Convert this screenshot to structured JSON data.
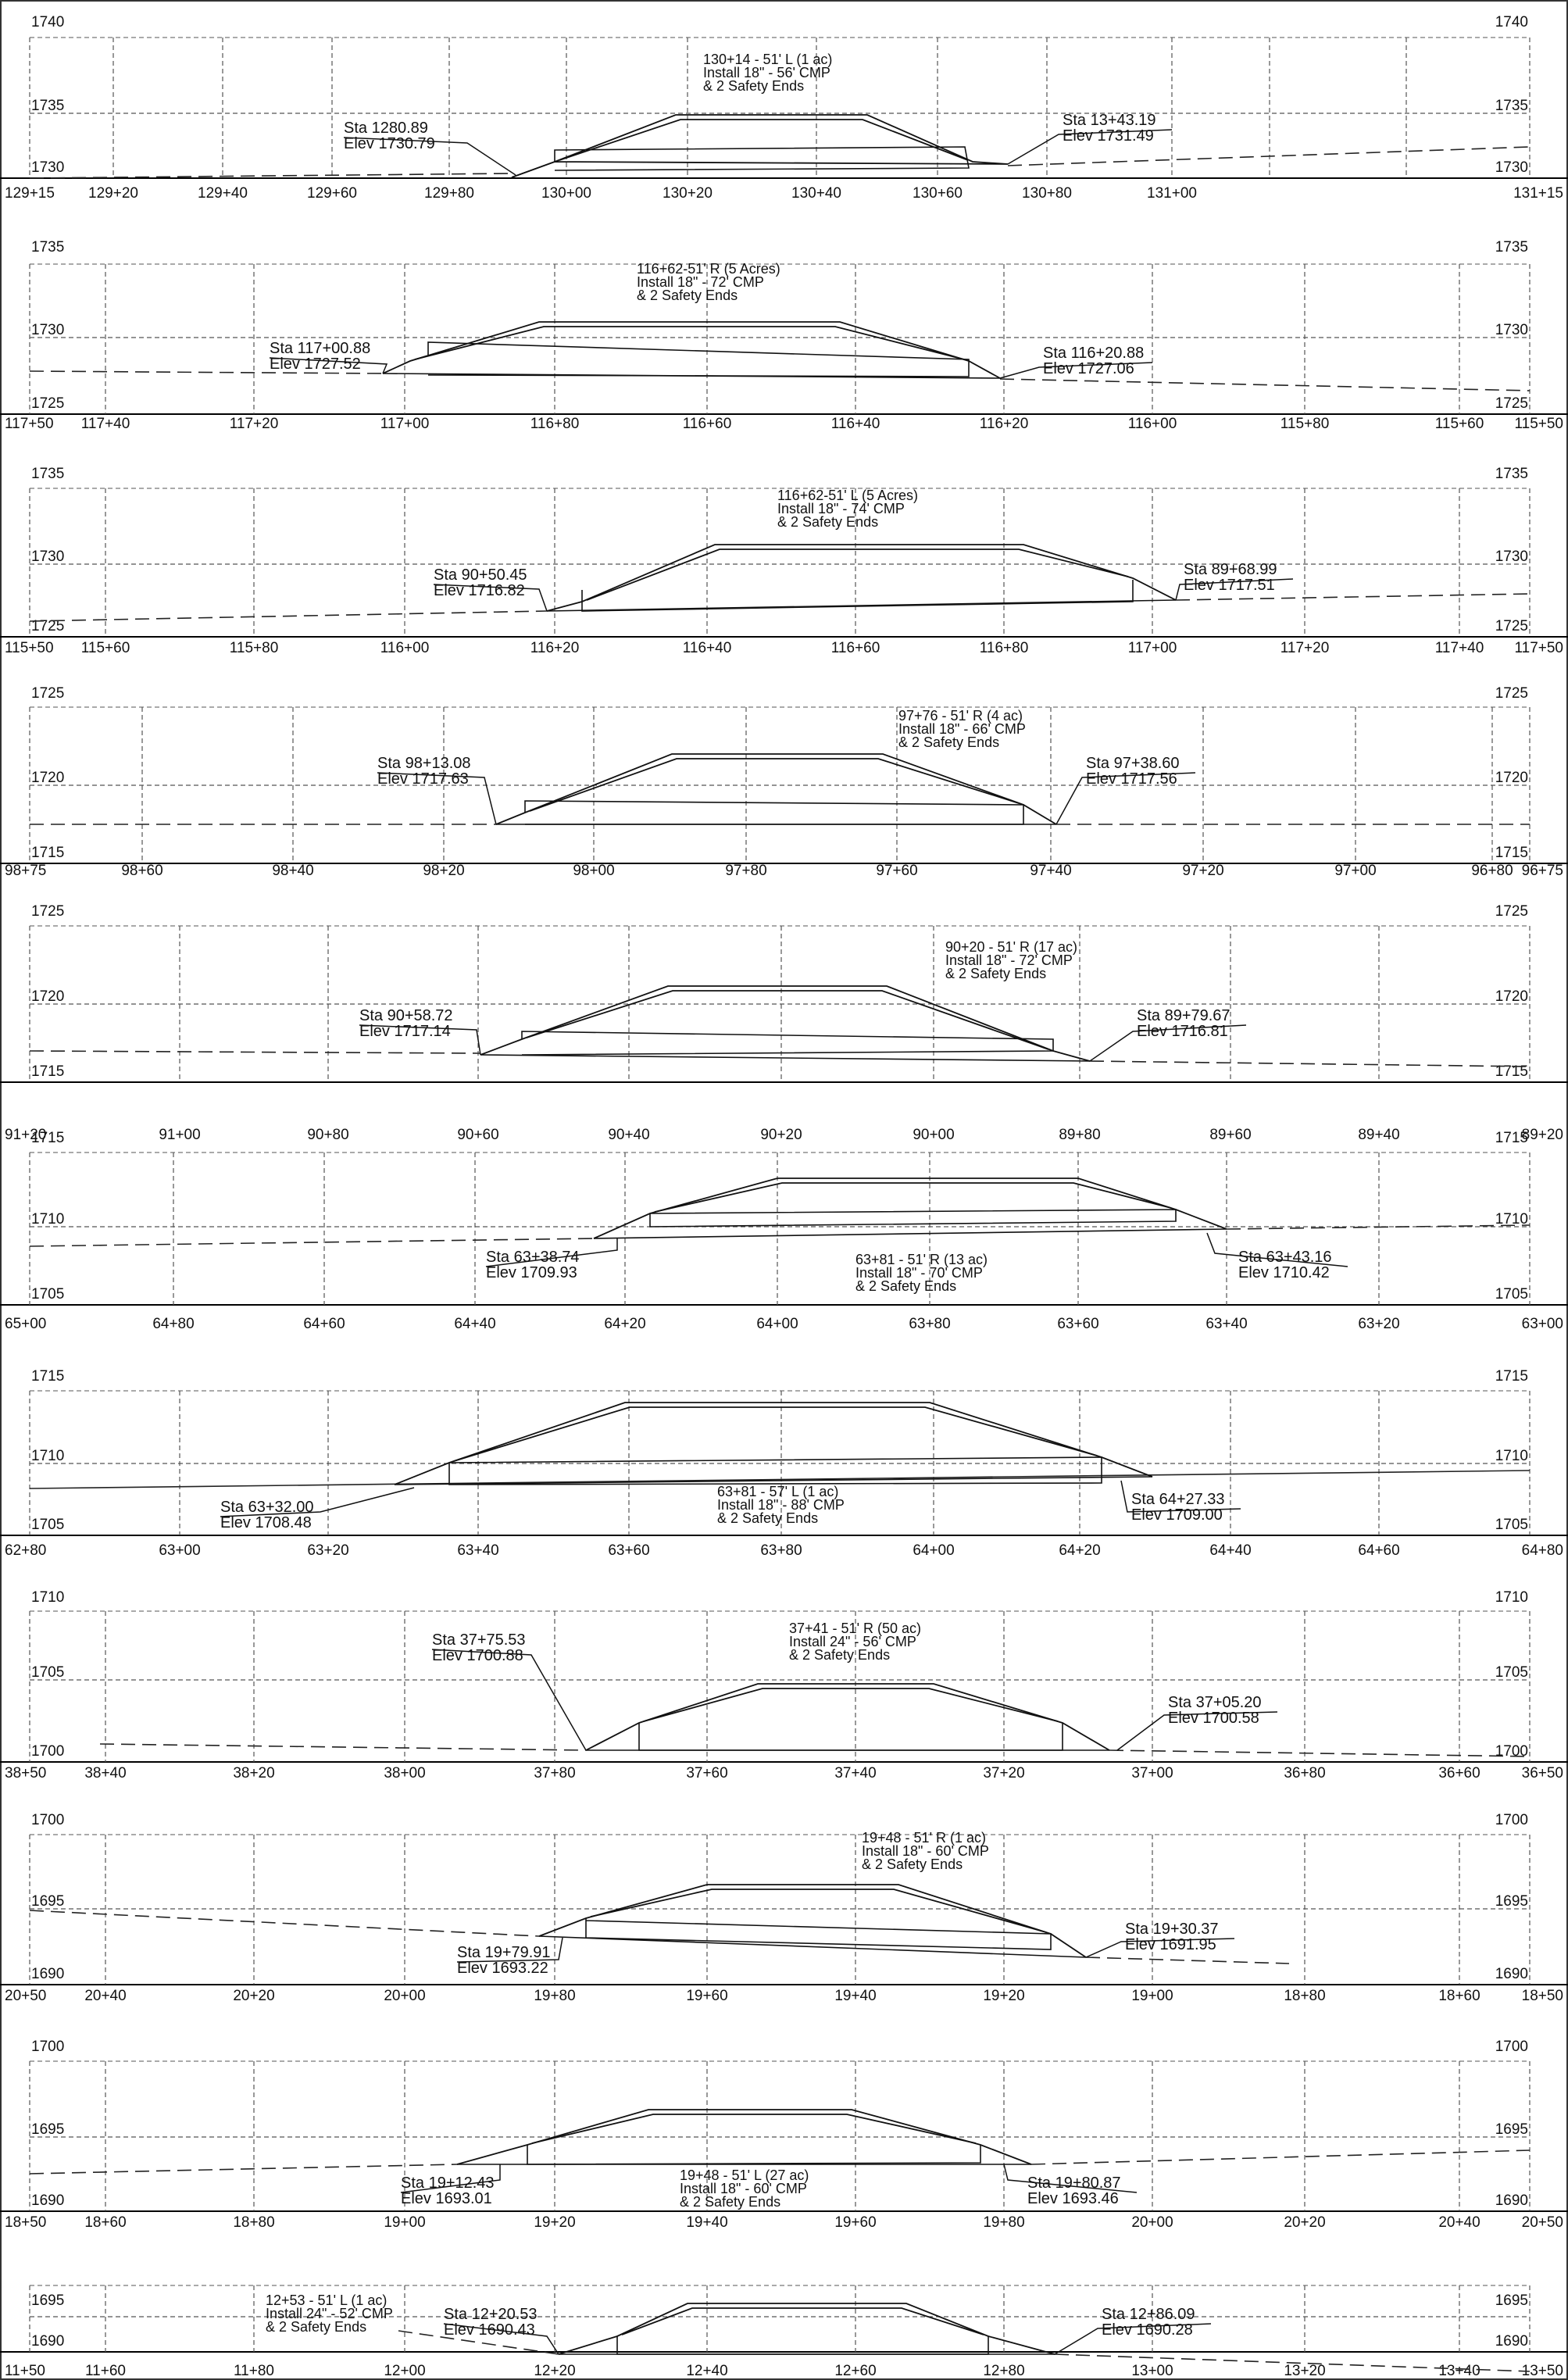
{
  "panels": [
    {
      "stations": [
        "129+15",
        "129+20",
        "129+40",
        "129+60",
        "129+80",
        "130+00",
        "130+20",
        "130+40",
        "130+60",
        "130+80",
        "131+00",
        "131+15"
      ],
      "elevations": [
        "1740",
        "1735",
        "1730"
      ],
      "note": [
        "130+14 - 51' L (1 ac)",
        "Install 18\" - 56' CMP",
        "& 2 Safety Ends"
      ],
      "left_label": [
        "Sta 1280.89",
        "Elev 1730.79"
      ],
      "right_label": [
        "Sta 13+43.19",
        "Elev 1731.49"
      ]
    },
    {
      "stations": [
        "117+50",
        "117+40",
        "117+20",
        "117+00",
        "116+80",
        "116+60",
        "116+40",
        "116+20",
        "116+00",
        "115+80",
        "115+60",
        "115+50"
      ],
      "elevations": [
        "1735",
        "1730",
        "1725"
      ],
      "note": [
        "116+62-51' R (5 Acres)",
        "Install 18\" - 72' CMP",
        "& 2 Safety Ends"
      ],
      "left_label": [
        "Sta 117+00.88",
        "Elev 1727.52"
      ],
      "right_label": [
        "Sta 116+20.88",
        "Elev 1727.06"
      ]
    },
    {
      "stations": [
        "115+50",
        "115+60",
        "115+80",
        "116+00",
        "116+20",
        "116+40",
        "116+60",
        "116+80",
        "117+00",
        "117+20",
        "117+40",
        "117+50"
      ],
      "elevations": [
        "1735",
        "1730",
        "1725"
      ],
      "note": [
        "116+62-51' L (5 Acres)",
        "Install 18\" - 74' CMP",
        "& 2 Safety Ends"
      ],
      "left_label": [
        "Sta 90+50.45",
        "Elev 1716.82"
      ],
      "right_label": [
        "Sta 89+68.99",
        "Elev 1717.51"
      ]
    },
    {
      "stations": [
        "98+75",
        "98+60",
        "98+40",
        "98+20",
        "98+00",
        "97+80",
        "97+60",
        "97+40",
        "97+20",
        "97+00",
        "96+80",
        "96+75"
      ],
      "elevations": [
        "1725",
        "1720",
        "1715"
      ],
      "note": [
        "97+76 - 51' R (4 ac)",
        "Install 18\" - 66' CMP",
        "& 2 Safety Ends"
      ],
      "left_label": [
        "Sta 98+13.08",
        "Elev 1717.63"
      ],
      "right_label": [
        "Sta 97+38.60",
        "Elev 1717.56"
      ]
    },
    {
      "stations": [
        "91+20",
        "91+00",
        "90+80",
        "90+60",
        "90+40",
        "90+20",
        "90+00",
        "89+80",
        "89+60",
        "89+40",
        "89+20"
      ],
      "elevations": [
        "1725",
        "1720",
        "1715"
      ],
      "note": [
        "90+20 - 51' R (17 ac)",
        "Install 18\" - 72' CMP",
        "& 2 Safety Ends"
      ],
      "left_label": [
        "Sta 90+58.72",
        "Elev 1717.14"
      ],
      "right_label": [
        "Sta 89+79.67",
        "Elev 1716.81"
      ]
    },
    {
      "stations": [
        "65+00",
        "64+80",
        "64+60",
        "64+40",
        "64+20",
        "64+00",
        "63+80",
        "63+60",
        "63+40",
        "63+20",
        "63+00"
      ],
      "elevations": [
        "1715",
        "1710",
        "1705"
      ],
      "note": [
        "63+81 - 51' R (13 ac)",
        "Install 18\" - 70' CMP",
        "& 2 Safety Ends"
      ],
      "left_label": [
        "Sta 63+38.74",
        "Elev 1709.93"
      ],
      "right_label": [
        "Sta 63+43.16",
        "Elev 1710.42"
      ]
    },
    {
      "stations": [
        "62+80",
        "63+00",
        "63+20",
        "63+40",
        "63+60",
        "63+80",
        "64+00",
        "64+20",
        "64+40",
        "64+60",
        "64+80"
      ],
      "elevations": [
        "1715",
        "1710",
        "1705"
      ],
      "note": [
        "63+81 - 57' L (1 ac)",
        "Install 18\" - 88' CMP",
        "& 2 Safety Ends"
      ],
      "left_label": [
        "Sta 63+32.00",
        "Elev 1708.48"
      ],
      "right_label": [
        "Sta 64+27.33",
        "Elev 1709.00"
      ]
    },
    {
      "stations": [
        "38+50",
        "38+40",
        "38+20",
        "38+00",
        "37+80",
        "37+60",
        "37+40",
        "37+20",
        "37+00",
        "36+80",
        "36+60",
        "36+50"
      ],
      "elevations": [
        "1710",
        "1705",
        "1700"
      ],
      "note": [
        "37+41 - 51' R (50 ac)",
        "Install 24\" - 56' CMP",
        "& 2 Safety Ends"
      ],
      "left_label": [
        "Sta 37+75.53",
        "Elev 1700.88"
      ],
      "right_label": [
        "Sta 37+05.20",
        "Elev 1700.58"
      ]
    },
    {
      "stations": [
        "20+50",
        "20+40",
        "20+20",
        "20+00",
        "19+80",
        "19+60",
        "19+40",
        "19+20",
        "19+00",
        "18+80",
        "18+60",
        "18+50"
      ],
      "elevations": [
        "1700",
        "1695",
        "1690"
      ],
      "note": [
        "19+48 - 51' R (1 ac)",
        "Install 18\" - 60' CMP",
        "& 2 Safety Ends"
      ],
      "left_label": [
        "Sta 19+79.91",
        "Elev 1693.22"
      ],
      "right_label": [
        "Sta 19+30.37",
        "Elev 1691.95"
      ]
    },
    {
      "stations": [
        "18+50",
        "18+60",
        "18+80",
        "19+00",
        "19+20",
        "19+40",
        "19+60",
        "19+80",
        "20+00",
        "20+20",
        "20+40",
        "20+50"
      ],
      "elevations": [
        "1700",
        "1695",
        "1690"
      ],
      "note": [
        "19+48 - 51' L (27 ac)",
        "Install 18\" - 60' CMP",
        "& 2 Safety Ends"
      ],
      "left_label": [
        "Sta 19+12.43",
        "Elev 1693.01"
      ],
      "right_label": [
        "Sta 19+80.87",
        "Elev 1693.46"
      ]
    },
    {
      "stations": [
        "11+50",
        "11+60",
        "11+80",
        "12+00",
        "12+20",
        "12+40",
        "12+60",
        "12+80",
        "13+00",
        "13+20",
        "13+40",
        "13+50"
      ],
      "elevations": [
        "1695",
        "1690"
      ],
      "note": [
        "12+53 - 51' L (1 ac)",
        "Install 24\" - 52' CMP",
        "& 2 Safety Ends"
      ],
      "left_label": [
        "Sta 12+20.53",
        "Elev 1690.43"
      ],
      "right_label": [
        "Sta 12+86.09",
        "Elev 1690.28"
      ]
    }
  ]
}
